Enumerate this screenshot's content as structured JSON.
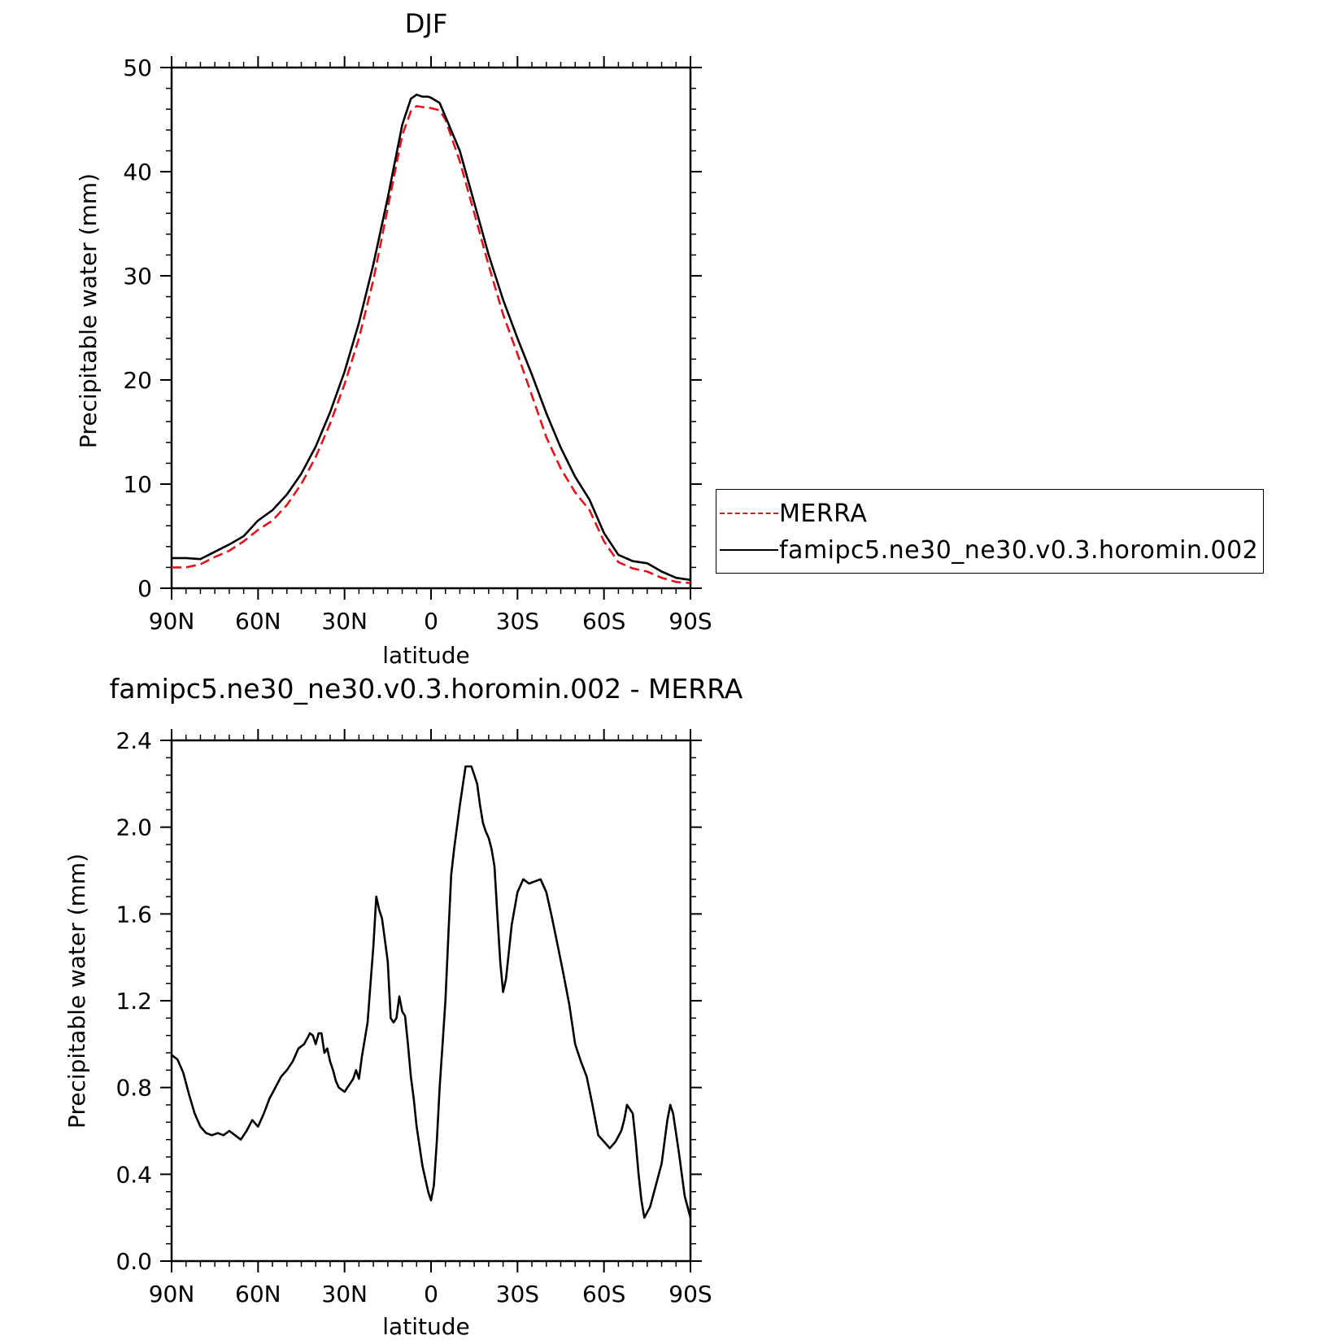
{
  "chart_data": [
    {
      "type": "line",
      "title": "DJF",
      "xlabel": "latitude",
      "ylabel": "Precipitable water (mm)",
      "xlim": [
        90,
        -90
      ],
      "ylim": [
        0,
        50
      ],
      "xticks": [
        90,
        60,
        30,
        0,
        -30,
        -60,
        -90
      ],
      "xtick_labels": [
        "90N",
        "60N",
        "30N",
        "0",
        "30S",
        "60S",
        "90S"
      ],
      "yticks": [
        0,
        10,
        20,
        30,
        40,
        50
      ],
      "ytick_labels": [
        "0",
        "10",
        "20",
        "30",
        "40",
        "50"
      ],
      "grid": false,
      "legend_placement": "outside-right",
      "series": [
        {
          "name": "MERRA",
          "color": "#e0141e",
          "style": "dashed",
          "x": [
            90,
            85,
            80,
            75,
            70,
            65,
            60,
            55,
            50,
            45,
            40,
            35,
            30,
            25,
            20,
            15,
            10,
            7,
            5,
            3,
            0,
            -3,
            -5,
            -10,
            -15,
            -20,
            -25,
            -30,
            -35,
            -40,
            -45,
            -50,
            -55,
            -60,
            -65,
            -70,
            -75,
            -80,
            -85,
            -90
          ],
          "y": [
            2.0,
            2.0,
            2.3,
            3.0,
            3.6,
            4.5,
            5.6,
            6.5,
            8.0,
            10.0,
            12.6,
            15.8,
            19.6,
            24.0,
            29.6,
            36.5,
            43.5,
            45.8,
            46.3,
            46.2,
            46.1,
            45.9,
            45.0,
            41.0,
            36.0,
            31.0,
            26.3,
            22.5,
            18.5,
            14.5,
            11.5,
            9.2,
            7.5,
            4.5,
            2.5,
            1.9,
            1.6,
            1.0,
            0.6,
            0.5
          ]
        },
        {
          "name": "famipc5.ne30_ne30.v0.3.horomin.002",
          "color": "#000000",
          "style": "solid",
          "x": [
            90,
            85,
            80,
            75,
            70,
            65,
            60,
            55,
            50,
            45,
            40,
            35,
            30,
            25,
            20,
            15,
            10,
            7,
            5,
            3,
            1,
            0,
            -3,
            -5,
            -10,
            -15,
            -20,
            -25,
            -30,
            -35,
            -40,
            -45,
            -50,
            -55,
            -60,
            -65,
            -70,
            -75,
            -80,
            -85,
            -90
          ],
          "y": [
            2.9,
            2.9,
            2.8,
            3.5,
            4.2,
            5.0,
            6.5,
            7.5,
            9.0,
            11.0,
            13.6,
            16.9,
            20.8,
            25.5,
            31.1,
            37.5,
            44.5,
            47.0,
            47.4,
            47.2,
            47.2,
            47.1,
            46.6,
            45.3,
            42.0,
            37.0,
            32.0,
            27.7,
            24.0,
            20.5,
            16.8,
            13.5,
            10.7,
            8.5,
            5.3,
            3.2,
            2.6,
            2.4,
            1.6,
            1.0,
            0.8
          ]
        }
      ]
    },
    {
      "type": "line",
      "title": "famipc5.ne30_ne30.v0.3.horomin.002 - MERRA",
      "xlabel": "latitude",
      "ylabel": "Precipitable water (mm)",
      "xlim": [
        90,
        -90
      ],
      "ylim": [
        0.0,
        2.4
      ],
      "xticks": [
        90,
        60,
        30,
        0,
        -30,
        -60,
        -90
      ],
      "xtick_labels": [
        "90N",
        "60N",
        "30N",
        "0",
        "30S",
        "60S",
        "90S"
      ],
      "yticks": [
        0.0,
        0.4,
        0.8,
        1.2,
        1.6,
        2.0,
        2.4
      ],
      "ytick_labels": [
        "0.0",
        "0.4",
        "0.8",
        "1.2",
        "1.6",
        "2.0",
        "2.4"
      ],
      "grid": false,
      "series": [
        {
          "color": "#000000",
          "style": "solid",
          "x": [
            90,
            88,
            86,
            84,
            82,
            80,
            78,
            76,
            74,
            72,
            70,
            68,
            66,
            64,
            62,
            60,
            58,
            56,
            54,
            52,
            50,
            48,
            46,
            44,
            42,
            41,
            40,
            39,
            38,
            37,
            36,
            35,
            34,
            33,
            32,
            30,
            28,
            27,
            26,
            25,
            24,
            22,
            21,
            20,
            19,
            18,
            17,
            16,
            15,
            14,
            13,
            12,
            11,
            10,
            9,
            8,
            7,
            6,
            5,
            3,
            1,
            0,
            -1,
            -2,
            -3,
            -4,
            -5,
            -6,
            -7,
            -8,
            -10,
            -12,
            -14,
            -15,
            -16,
            -17,
            -18,
            -19,
            -20,
            -21,
            -22,
            -23,
            -24,
            -25,
            -26,
            -28,
            -30,
            -32,
            -34,
            -36,
            -38,
            -40,
            -42,
            -44,
            -46,
            -48,
            -50,
            -52,
            -54,
            -56,
            -58,
            -60,
            -62,
            -64,
            -66,
            -67,
            -68,
            -70,
            -71,
            -72,
            -73,
            -74,
            -76,
            -78,
            -80,
            -81,
            -82,
            -83,
            -84,
            -86,
            -88,
            -90
          ],
          "y": [
            0.95,
            0.93,
            0.87,
            0.77,
            0.68,
            0.62,
            0.59,
            0.58,
            0.59,
            0.58,
            0.6,
            0.58,
            0.56,
            0.6,
            0.65,
            0.62,
            0.68,
            0.75,
            0.8,
            0.85,
            0.88,
            0.92,
            0.98,
            1.0,
            1.05,
            1.04,
            1.0,
            1.05,
            1.05,
            0.96,
            0.98,
            0.92,
            0.88,
            0.83,
            0.8,
            0.78,
            0.82,
            0.84,
            0.88,
            0.84,
            0.94,
            1.1,
            1.28,
            1.45,
            1.68,
            1.62,
            1.58,
            1.48,
            1.38,
            1.12,
            1.1,
            1.12,
            1.22,
            1.15,
            1.13,
            1.0,
            0.85,
            0.75,
            0.62,
            0.44,
            0.32,
            0.28,
            0.35,
            0.55,
            0.8,
            1.0,
            1.2,
            1.5,
            1.78,
            1.9,
            2.1,
            2.28,
            2.28,
            2.24,
            2.2,
            2.1,
            2.02,
            1.98,
            1.95,
            1.9,
            1.82,
            1.6,
            1.38,
            1.24,
            1.3,
            1.55,
            1.7,
            1.76,
            1.74,
            1.75,
            1.76,
            1.7,
            1.58,
            1.45,
            1.32,
            1.18,
            1.0,
            0.92,
            0.85,
            0.72,
            0.58,
            0.55,
            0.52,
            0.55,
            0.6,
            0.65,
            0.72,
            0.68,
            0.55,
            0.4,
            0.28,
            0.2,
            0.25,
            0.35,
            0.45,
            0.55,
            0.65,
            0.72,
            0.68,
            0.5,
            0.3,
            0.2
          ]
        }
      ]
    }
  ],
  "legend": {
    "entries": [
      {
        "label": "MERRA",
        "color": "#e0141e",
        "style": "dashed"
      },
      {
        "label": "famipc5.ne30_ne30.v0.3.horomin.002",
        "color": "#000000",
        "style": "solid"
      }
    ]
  }
}
